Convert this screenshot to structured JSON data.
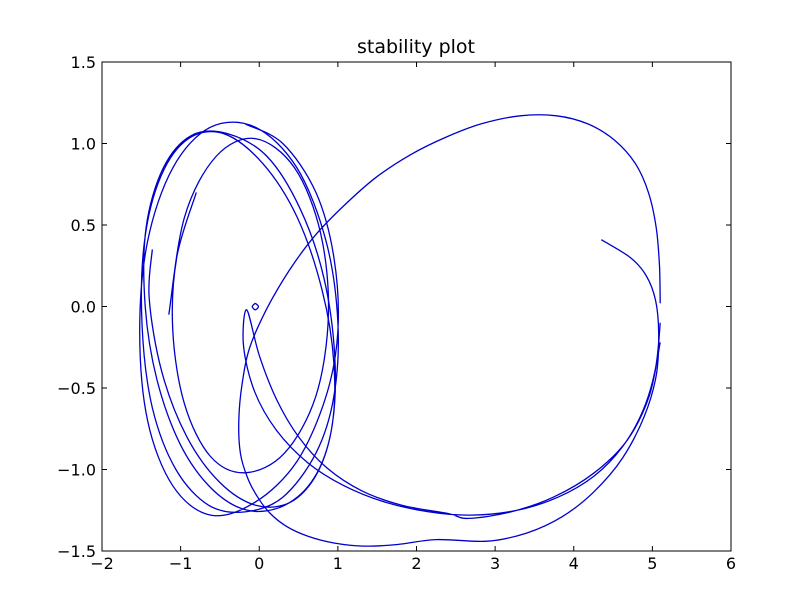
{
  "chart_data": {
    "type": "line",
    "title": "stability plot",
    "xlabel": "",
    "ylabel": "",
    "xlim": [
      -2,
      6
    ],
    "ylim": [
      -1.5,
      1.5
    ],
    "xticks": [
      -2,
      -1,
      0,
      1,
      2,
      3,
      4,
      5,
      6
    ],
    "yticks": [
      -1.5,
      -1.0,
      -0.5,
      0.0,
      0.5,
      1.0,
      1.5
    ],
    "xtick_labels": [
      "−2",
      "−1",
      "0",
      "1",
      "2",
      "3",
      "4",
      "5",
      "6"
    ],
    "ytick_labels": [
      "−1.5",
      "−1.0",
      "−0.5",
      "0.0",
      "0.5",
      "1.0",
      "1.5"
    ],
    "grid": false,
    "legend": "none",
    "line_color": "#0000cc",
    "series": [
      {
        "x": [
          5.1,
          5.09,
          5.05,
          4.95,
          4.78,
          4.52,
          4.18,
          3.78,
          3.32,
          2.82,
          2.38,
          1.92,
          1.48,
          1.08,
          0.7,
          0.38,
          0.1,
          -0.12,
          -0.22,
          -0.26,
          -0.24,
          -0.15,
          -0.02,
          0.14,
          0.35,
          0.62,
          0.94,
          1.32,
          1.76,
          2.25,
          2.9,
          3.4,
          3.85,
          4.25,
          4.62,
          4.9,
          5.05,
          5.08,
          5.04,
          4.92,
          4.72,
          4.35
        ],
        "y": [
          0.02,
          0.25,
          0.48,
          0.7,
          0.88,
          1.02,
          1.12,
          1.17,
          1.17,
          1.12,
          1.04,
          0.93,
          0.79,
          0.62,
          0.43,
          0.22,
          -0.01,
          -0.25,
          -0.48,
          -0.7,
          -0.9,
          -1.05,
          -1.17,
          -1.27,
          -1.35,
          -1.41,
          -1.45,
          -1.47,
          -1.46,
          -1.43,
          -1.44,
          -1.39,
          -1.29,
          -1.14,
          -0.93,
          -0.67,
          -0.42,
          -0.16,
          0.04,
          0.19,
          0.3,
          0.41
        ]
      },
      {
        "x": [
          5.1,
          5.04,
          4.88,
          4.62,
          4.26,
          3.8,
          3.28,
          2.7,
          2.16,
          1.6,
          1.08,
          0.62,
          0.22,
          -0.06,
          -0.2,
          -0.16,
          0.0,
          0.22,
          0.5,
          0.86,
          1.3,
          1.82,
          2.4,
          2.66,
          3.2,
          3.74,
          4.26,
          4.68,
          4.96,
          5.1
        ],
        "y": [
          -0.1,
          -0.38,
          -0.64,
          -0.86,
          -1.04,
          -1.17,
          -1.25,
          -1.28,
          -1.26,
          -1.2,
          -1.1,
          -0.96,
          -0.76,
          -0.52,
          -0.24,
          -0.02,
          -0.3,
          -0.57,
          -0.8,
          -0.99,
          -1.13,
          -1.22,
          -1.27,
          -1.3,
          -1.26,
          -1.17,
          -1.02,
          -0.82,
          -0.55,
          -0.22
        ]
      },
      {
        "x": [
          -0.18,
          0.3,
          0.72,
          0.95,
          1.0,
          0.85,
          0.48,
          -0.05,
          -0.62,
          -1.1,
          -1.42,
          -1.52,
          -1.42,
          -1.1,
          -0.62,
          -0.05,
          0.48,
          0.85,
          1.0,
          0.95,
          0.72,
          0.3,
          -0.18,
          -0.64,
          -1.06,
          -1.36,
          -1.49,
          -1.46,
          -1.25,
          -0.9,
          -0.45,
          0.04,
          0.48,
          0.8,
          0.95,
          0.92,
          0.7,
          0.32,
          -0.15,
          -0.6,
          -1.0,
          -1.3,
          -1.45,
          -1.44,
          -1.22,
          -0.86,
          -0.4,
          0.1,
          0.52,
          0.82,
          0.96,
          0.93,
          0.74,
          0.4,
          -0.04,
          -0.5,
          -0.92,
          -1.24,
          -1.4,
          -1.36
        ],
        "y": [
          1.12,
          1.0,
          0.7,
          0.3,
          -0.15,
          -0.55,
          -0.95,
          -1.2,
          -1.28,
          -1.1,
          -0.7,
          -0.15,
          0.4,
          0.85,
          1.1,
          1.1,
          0.85,
          0.4,
          -0.1,
          -0.55,
          -0.9,
          -1.17,
          -1.26,
          -1.22,
          -1.0,
          -0.62,
          -0.12,
          0.4,
          0.8,
          1.03,
          1.06,
          0.88,
          0.55,
          0.1,
          -0.35,
          -0.75,
          -1.05,
          -1.22,
          -1.25,
          -1.12,
          -0.85,
          -0.45,
          0.0,
          0.48,
          0.85,
          1.05,
          1.06,
          0.92,
          0.6,
          0.18,
          -0.3,
          -0.72,
          -1.02,
          -1.2,
          -1.22,
          -1.08,
          -0.8,
          -0.4,
          0.05,
          0.35
        ]
      },
      {
        "x": [
          -1.15,
          -0.95,
          -0.55,
          -0.05,
          0.45,
          0.78,
          0.88,
          0.72,
          0.32,
          -0.18,
          -0.62,
          -0.95,
          -1.1,
          -1.05,
          -0.8
        ],
        "y": [
          -0.05,
          0.55,
          0.92,
          1.03,
          0.85,
          0.45,
          -0.05,
          -0.55,
          -0.9,
          -1.02,
          -0.92,
          -0.6,
          -0.15,
          0.3,
          0.7
        ]
      },
      {
        "x": [
          -0.05,
          -0.01,
          -0.05,
          -0.09,
          -0.05
        ],
        "y": [
          0.02,
          0.0,
          -0.02,
          0.0,
          0.02
        ]
      }
    ]
  }
}
